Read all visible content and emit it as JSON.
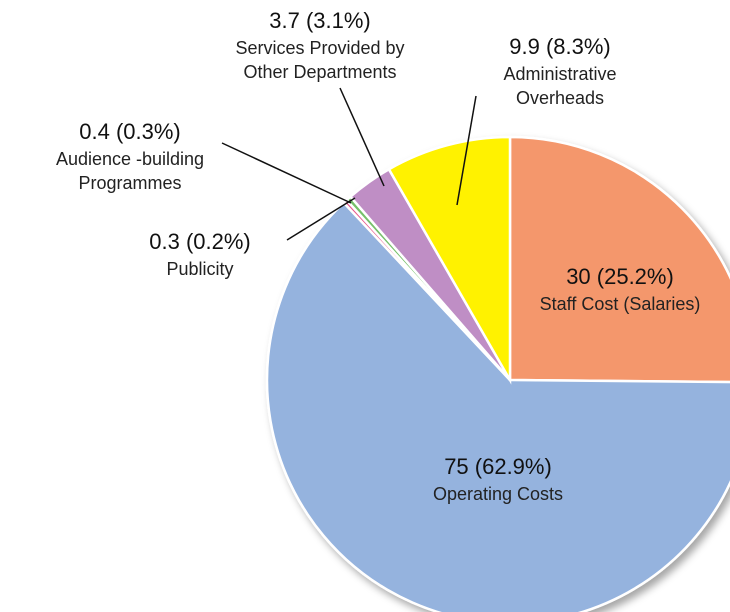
{
  "chart_data": {
    "type": "pie",
    "categories": [
      "Staff Cost (Salaries)",
      "Operating Costs",
      "Publicity",
      "Audience -building Programmes",
      "Services Provided by Other Departments",
      "Administrative Overheads"
    ],
    "values": [
      30,
      75,
      0.3,
      0.4,
      3.7,
      9.9
    ],
    "value_labels": [
      "30 (25.2%)",
      "75 (62.9%)",
      "0.3 (0.2%)",
      "0.4 (0.3%)",
      "3.7 (3.1%)",
      "9.9 (8.3%)"
    ],
    "colors": [
      "#f4976c",
      "#95b3de",
      "#e8588c",
      "#76c06a",
      "#bf8ec5",
      "#fff200"
    ]
  }
}
